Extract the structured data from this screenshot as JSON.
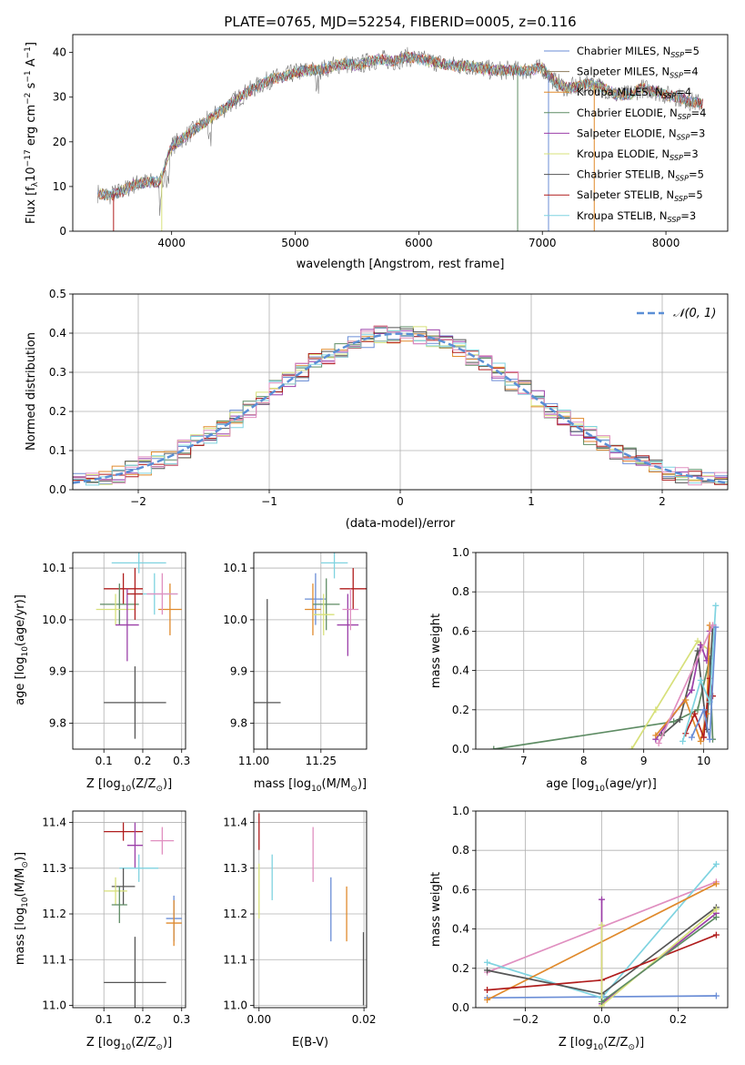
{
  "title": "PLATE=0765, MJD=52254, FIBERID=0005, z=0.116",
  "chart_data": [
    {
      "id": "spectrum",
      "type": "line",
      "xlabel": "wavelength [Angstrom, rest frame]",
      "ylabel": "Flux [f",
      "ylabel_parts": [
        "Flux [f",
        "λ",
        "10",
        "−17",
        " erg cm",
        "−2",
        " s",
        "−1",
        " A",
        "−1",
        "]"
      ],
      "xlim": [
        3200,
        8500
      ],
      "ylim": [
        0,
        44
      ],
      "xticks": [
        4000,
        5000,
        6000,
        7000,
        8000
      ],
      "yticks": [
        0,
        10,
        20,
        30,
        40
      ],
      "grid": false,
      "legend_position": "top-right",
      "continuum": {
        "x": [
          3400,
          3500,
          3600,
          3700,
          3800,
          3900,
          4000,
          4100,
          4200,
          4300,
          4400,
          4500,
          4600,
          4700,
          4800,
          4900,
          5000,
          5100,
          5200,
          5300,
          5400,
          5500,
          5600,
          5700,
          5800,
          5900,
          6000,
          6100,
          6200,
          6300,
          6400,
          6500,
          6600,
          6700,
          6800,
          6900,
          7000,
          7100,
          7200,
          7300,
          7400,
          7500,
          7600,
          7700,
          7800,
          7900,
          8000,
          8100,
          8200,
          8300
        ],
        "y": [
          8.5,
          8.0,
          9.0,
          10.5,
          11.0,
          11.0,
          19.0,
          21.0,
          23.0,
          25.0,
          27.0,
          29.0,
          31.0,
          32.5,
          34.0,
          34.5,
          35.5,
          36.0,
          36.0,
          37.0,
          37.5,
          37.0,
          38.0,
          38.5,
          38.0,
          39.0,
          38.5,
          38.0,
          37.5,
          37.0,
          37.0,
          36.5,
          36.0,
          36.0,
          36.0,
          36.0,
          36.5,
          33.5,
          32.0,
          32.5,
          33.0,
          32.0,
          30.5,
          30.5,
          32.0,
          31.5,
          30.5,
          30.0,
          29.0,
          28.5
        ]
      },
      "series": [
        {
          "name": "Chabrier MILES, N",
          "sub": "SSP",
          "suffix": "=5",
          "color": "#6a8dd6"
        },
        {
          "name": "Salpeter MILES, N",
          "sub": "SSP",
          "suffix": "=4",
          "color": "#8c7a5a"
        },
        {
          "name": "Kroupa MILES, N",
          "sub": "SSP",
          "suffix": "=4",
          "color": "#e08a2c"
        },
        {
          "name": "Chabrier ELODIE, N",
          "sub": "SSP",
          "suffix": "=4",
          "color": "#5e8c64"
        },
        {
          "name": "Salpeter ELODIE, N",
          "sub": "SSP",
          "suffix": "=3",
          "color": "#9b3fa8"
        },
        {
          "name": "Kroupa ELODIE, N",
          "sub": "SSP",
          "suffix": "=3",
          "color": "#d7e07a"
        },
        {
          "name": "Chabrier STELIB, N",
          "sub": "SSP",
          "suffix": "=5",
          "color": "#555555"
        },
        {
          "name": "Salpeter STELIB, N",
          "sub": "SSP",
          "suffix": "=5",
          "color": "#b01d1d"
        },
        {
          "name": "Kroupa STELIB, N",
          "sub": "SSP",
          "suffix": "=3",
          "color": "#7fd3e0"
        }
      ],
      "drops": [
        {
          "x": 3530,
          "to": 0,
          "color": "#b01d1d"
        },
        {
          "x": 3920,
          "to": 0,
          "color": "#d7e07a"
        },
        {
          "x": 6800,
          "to": 0,
          "color": "#5e8c64"
        },
        {
          "x": 7050,
          "to": 0,
          "color": "#6a8dd6"
        },
        {
          "x": 7420,
          "to": 0,
          "color": "#e08a2c"
        }
      ]
    },
    {
      "id": "residuals",
      "type": "line",
      "xlabel": "(data-model)/error",
      "ylabel": "Normed distribution",
      "xlim": [
        -2.5,
        2.5
      ],
      "ylim": [
        0,
        0.5
      ],
      "xticks": [
        -2,
        -1,
        0,
        1,
        2
      ],
      "xticklabels": [
        "−2",
        "−1",
        "0",
        "1",
        "2"
      ],
      "yticks": [
        0.0,
        0.1,
        0.2,
        0.3,
        0.4,
        0.5
      ],
      "yticklabels": [
        "0.0",
        "0.1",
        "0.2",
        "0.3",
        "0.4",
        "0.5"
      ],
      "grid": true,
      "legend_position": "top-right",
      "legend_label": "𝒩(0, 1)",
      "gaussian": {
        "mu": 0,
        "sigma": 1,
        "color": "#5b8fd6"
      },
      "bin_width": 0.1,
      "colors": [
        "#6a8dd6",
        "#e08a2c",
        "#5e8c64",
        "#9b3fa8",
        "#d7e07a",
        "#555555",
        "#b01d1d",
        "#7fd3e0",
        "#e08fc0"
      ]
    },
    {
      "id": "z-age",
      "type": "scatter",
      "xlabel": "Z [log",
      "xlabel_parts": [
        "Z [log",
        "10",
        "(Z/Z",
        "⊙",
        ")]"
      ],
      "ylabel_parts": [
        "age  [log",
        "10",
        "(age/yr)]"
      ],
      "xlim": [
        0.02,
        0.31
      ],
      "ylim": [
        9.75,
        10.13
      ],
      "xticks": [
        0.1,
        0.2,
        0.3
      ],
      "yticks": [
        9.8,
        9.9,
        10.0,
        10.1
      ],
      "xticklabels": [
        "0.1",
        "0.2",
        "0.3"
      ],
      "yticklabels": [
        "9.8",
        "9.9",
        "10.0",
        "10.1"
      ],
      "grid": true,
      "points": [
        {
          "x": 0.18,
          "y": 9.84,
          "xerr": 0.08,
          "yerr": 0.07,
          "color": "#555555"
        },
        {
          "x": 0.15,
          "y": 10.06,
          "xerr": 0.05,
          "yerr": 0.03,
          "color": "#b01d1d"
        },
        {
          "x": 0.19,
          "y": 10.11,
          "xerr": 0.07,
          "yerr": 0.02,
          "color": "#7fd3e0"
        },
        {
          "x": 0.27,
          "y": 10.02,
          "xerr": 0.03,
          "yerr": 0.05,
          "color": "#e08a2c"
        },
        {
          "x": 0.23,
          "y": 10.05,
          "xerr": 0.06,
          "yerr": 0.04,
          "color": "#7fd3e0"
        },
        {
          "x": 0.14,
          "y": 10.03,
          "xerr": 0.05,
          "yerr": 0.04,
          "color": "#5e8c64"
        },
        {
          "x": 0.13,
          "y": 10.02,
          "xerr": 0.05,
          "yerr": 0.03,
          "color": "#d7e07a"
        },
        {
          "x": 0.16,
          "y": 9.99,
          "xerr": 0.03,
          "yerr": 0.07,
          "color": "#9b3fa8"
        },
        {
          "x": 0.18,
          "y": 10.05,
          "xerr": 0.02,
          "yerr": 0.05,
          "color": "#b01d1d"
        },
        {
          "x": 0.25,
          "y": 10.05,
          "xerr": 0.04,
          "yerr": 0.04,
          "color": "#e08fc0"
        }
      ]
    },
    {
      "id": "mass-age",
      "type": "scatter",
      "xlabel_parts": [
        "mass [log",
        "10",
        "(M/M",
        "⊙",
        ")]"
      ],
      "xlim": [
        11.0,
        11.42
      ],
      "ylim": [
        9.75,
        10.13
      ],
      "xticks": [
        11.0,
        11.25
      ],
      "xticklabels": [
        "11.00",
        "11.25"
      ],
      "yticks": [
        9.8,
        9.9,
        10.0,
        10.1
      ],
      "yticklabels": [
        "9.8",
        "9.9",
        "10.0",
        "10.1"
      ],
      "grid": true,
      "points": [
        {
          "x": 11.05,
          "y": 9.84,
          "xerr": 0.05,
          "yerr": 0.2,
          "color": "#555555"
        },
        {
          "x": 11.3,
          "y": 10.11,
          "xerr": 0.05,
          "yerr": 0.03,
          "color": "#7fd3e0"
        },
        {
          "x": 11.37,
          "y": 10.06,
          "xerr": 0.05,
          "yerr": 0.04,
          "color": "#b01d1d"
        },
        {
          "x": 11.23,
          "y": 10.04,
          "xerr": 0.04,
          "yerr": 0.05,
          "color": "#6a8dd6"
        },
        {
          "x": 11.22,
          "y": 10.02,
          "xerr": 0.03,
          "yerr": 0.05,
          "color": "#e08a2c"
        },
        {
          "x": 11.27,
          "y": 10.03,
          "xerr": 0.05,
          "yerr": 0.05,
          "color": "#5e8c64"
        },
        {
          "x": 11.26,
          "y": 10.01,
          "xerr": 0.04,
          "yerr": 0.04,
          "color": "#d7e07a"
        },
        {
          "x": 11.35,
          "y": 9.99,
          "xerr": 0.04,
          "yerr": 0.06,
          "color": "#9b3fa8"
        },
        {
          "x": 11.36,
          "y": 10.02,
          "xerr": 0.03,
          "yerr": 0.04,
          "color": "#e08fc0"
        }
      ]
    },
    {
      "id": "age-weight",
      "type": "line",
      "xlabel_parts": [
        "age  [log",
        "10",
        "(age/yr)]"
      ],
      "ylabel": "mass weight",
      "xlim": [
        6.2,
        10.4
      ],
      "ylim": [
        0,
        1
      ],
      "xticks": [
        7,
        8,
        9,
        10
      ],
      "yticks": [
        0,
        0.2,
        0.4,
        0.6,
        0.8,
        1.0
      ],
      "yticklabels": [
        "0.0",
        "0.2",
        "0.4",
        "0.6",
        "0.8",
        "1.0"
      ],
      "grid": true,
      "series": [
        {
          "color": "#5e8c64",
          "x": [
            6.5,
            9.5,
            9.9,
            10.1,
            10.15
          ],
          "y": [
            0.0,
            0.14,
            0.2,
            0.46,
            0.05
          ]
        },
        {
          "color": "#d7e07a",
          "x": [
            8.8,
            9.2,
            9.9,
            10.1
          ],
          "y": [
            0.0,
            0.2,
            0.55,
            0.5
          ]
        },
        {
          "color": "#9b3fa8",
          "x": [
            9.2,
            9.8,
            9.95,
            10.05,
            10.1
          ],
          "y": [
            0.05,
            0.3,
            0.53,
            0.45,
            0.6
          ]
        },
        {
          "color": "#555555",
          "x": [
            9.3,
            9.6,
            9.9,
            10.05,
            10.15
          ],
          "y": [
            0.07,
            0.15,
            0.5,
            0.1,
            0.62
          ]
        },
        {
          "color": "#e08a2c",
          "x": [
            9.2,
            9.7,
            9.95,
            10.05,
            10.1
          ],
          "y": [
            0.07,
            0.25,
            0.04,
            0.18,
            0.63
          ]
        },
        {
          "color": "#b01d1d",
          "x": [
            9.7,
            9.85,
            10.0,
            10.1,
            10.15
          ],
          "y": [
            0.08,
            0.18,
            0.06,
            0.36,
            0.27
          ]
        },
        {
          "color": "#7fd3e0",
          "x": [
            9.65,
            9.95,
            10.1,
            10.2
          ],
          "y": [
            0.04,
            0.35,
            0.24,
            0.73
          ]
        },
        {
          "color": "#6a8dd6",
          "x": [
            9.8,
            10.0,
            10.1,
            10.2
          ],
          "y": [
            0.06,
            0.2,
            0.05,
            0.62
          ]
        },
        {
          "color": "#e08fc0",
          "x": [
            9.25,
            10.15
          ],
          "y": [
            0.03,
            0.63
          ]
        }
      ]
    },
    {
      "id": "z-mass",
      "type": "scatter",
      "xlabel_parts": [
        "Z [log",
        "10",
        "(Z/Z",
        "⊙",
        ")]"
      ],
      "ylabel_parts": [
        "mass [log",
        "10",
        "(M/M",
        "⊙",
        ")]"
      ],
      "xlim": [
        0.02,
        0.31
      ],
      "ylim": [
        10.995,
        11.425
      ],
      "xticks": [
        0.1,
        0.2,
        0.3
      ],
      "xticklabels": [
        "0.1",
        "0.2",
        "0.3"
      ],
      "yticks": [
        11.0,
        11.1,
        11.2,
        11.3,
        11.4
      ],
      "yticklabels": [
        "11.0",
        "11.1",
        "11.2",
        "11.3",
        "11.4"
      ],
      "grid": true,
      "points": [
        {
          "x": 0.18,
          "y": 11.05,
          "xerr": 0.08,
          "yerr": 0.1,
          "color": "#555555"
        },
        {
          "x": 0.15,
          "y": 11.38,
          "xerr": 0.05,
          "yerr": 0.02,
          "color": "#b01d1d"
        },
        {
          "x": 0.18,
          "y": 11.35,
          "xerr": 0.02,
          "yerr": 0.05,
          "color": "#9b3fa8"
        },
        {
          "x": 0.25,
          "y": 11.36,
          "xerr": 0.03,
          "yerr": 0.03,
          "color": "#e08fc0"
        },
        {
          "x": 0.19,
          "y": 11.3,
          "xerr": 0.05,
          "yerr": 0.03,
          "color": "#7fd3e0"
        },
        {
          "x": 0.15,
          "y": 11.26,
          "xerr": 0.03,
          "yerr": 0.04,
          "color": "#555555"
        },
        {
          "x": 0.13,
          "y": 11.25,
          "xerr": 0.03,
          "yerr": 0.03,
          "color": "#d7e07a"
        },
        {
          "x": 0.28,
          "y": 11.19,
          "xerr": 0.02,
          "yerr": 0.05,
          "color": "#6a8dd6"
        },
        {
          "x": 0.28,
          "y": 11.18,
          "xerr": 0.02,
          "yerr": 0.05,
          "color": "#e08a2c"
        },
        {
          "x": 0.14,
          "y": 11.22,
          "xerr": 0.02,
          "yerr": 0.04,
          "color": "#5e8c64"
        }
      ]
    },
    {
      "id": "ebv-mass",
      "type": "scatter",
      "xlabel": "E(B-V)",
      "xlim": [
        -0.001,
        0.0205
      ],
      "ylim": [
        10.995,
        11.425
      ],
      "xticks": [
        0.0,
        0.02
      ],
      "xticklabels": [
        "0.00",
        "0.02"
      ],
      "yticks": [
        11.0,
        11.1,
        11.2,
        11.3,
        11.4
      ],
      "yticklabels": [
        "11.0",
        "11.1",
        "11.2",
        "11.3",
        "11.4"
      ],
      "grid": true,
      "points": [
        {
          "x": 0.0,
          "y": 11.38,
          "xerr": 0,
          "yerr": 0.04,
          "color": "#b01d1d"
        },
        {
          "x": 0.0,
          "y": 11.25,
          "xerr": 0,
          "yerr": 0.06,
          "color": "#d7e07a"
        },
        {
          "x": 0.0025,
          "y": 11.28,
          "xerr": 0,
          "yerr": 0.05,
          "color": "#7fd3e0"
        },
        {
          "x": 0.0103,
          "y": 11.33,
          "xerr": 0,
          "yerr": 0.06,
          "color": "#e08fc0"
        },
        {
          "x": 0.0137,
          "y": 11.21,
          "xerr": 0,
          "yerr": 0.07,
          "color": "#6a8dd6"
        },
        {
          "x": 0.0167,
          "y": 11.2,
          "xerr": 0,
          "yerr": 0.06,
          "color": "#e08a2c"
        },
        {
          "x": 0.0199,
          "y": 11.08,
          "xerr": 0,
          "yerr": 0.08,
          "color": "#555555"
        }
      ]
    },
    {
      "id": "z-weight",
      "type": "line",
      "xlabel_parts": [
        "Z [log",
        "10",
        "(Z/Z",
        "⊙",
        ")]"
      ],
      "ylabel": "mass weight",
      "xlim": [
        -0.33,
        0.33
      ],
      "ylim": [
        0,
        1
      ],
      "xticks": [
        -0.2,
        0.0,
        0.2
      ],
      "xticklabels": [
        "−0.2",
        "0.0",
        "0.2"
      ],
      "yticks": [
        0,
        0.2,
        0.4,
        0.6,
        0.8,
        1.0
      ],
      "yticklabels": [
        "0.0",
        "0.2",
        "0.4",
        "0.6",
        "0.8",
        "1.0"
      ],
      "grid": true,
      "series": [
        {
          "color": "#6a8dd6",
          "x": [
            -0.3,
            0.3
          ],
          "y": [
            0.05,
            0.06
          ]
        },
        {
          "color": "#e08fc0",
          "x": [
            -0.3,
            0.3
          ],
          "y": [
            0.18,
            0.64
          ]
        },
        {
          "color": "#7fd3e0",
          "x": [
            -0.3,
            0.0,
            0.3
          ],
          "y": [
            0.23,
            0.05,
            0.73
          ]
        },
        {
          "color": "#e08a2c",
          "x": [
            -0.3,
            0.3
          ],
          "y": [
            0.04,
            0.63
          ]
        },
        {
          "color": "#555555",
          "x": [
            -0.3,
            0.0,
            0.3
          ],
          "y": [
            0.19,
            0.07,
            0.51
          ]
        },
        {
          "color": "#b01d1d",
          "x": [
            -0.3,
            0.0,
            0.3
          ],
          "y": [
            0.09,
            0.14,
            0.37
          ]
        },
        {
          "color": "#9b3fa8",
          "x": [
            0.0,
            0.0,
            0.3
          ],
          "y": [
            0.55,
            0.02,
            0.48
          ]
        },
        {
          "color": "#d7e07a",
          "x": [
            0.0,
            0.0,
            0.3
          ],
          "y": [
            0.42,
            0.01,
            0.5
          ]
        },
        {
          "color": "#5e8c64",
          "x": [
            0.0,
            0.3
          ],
          "y": [
            0.03,
            0.46
          ]
        }
      ]
    }
  ]
}
